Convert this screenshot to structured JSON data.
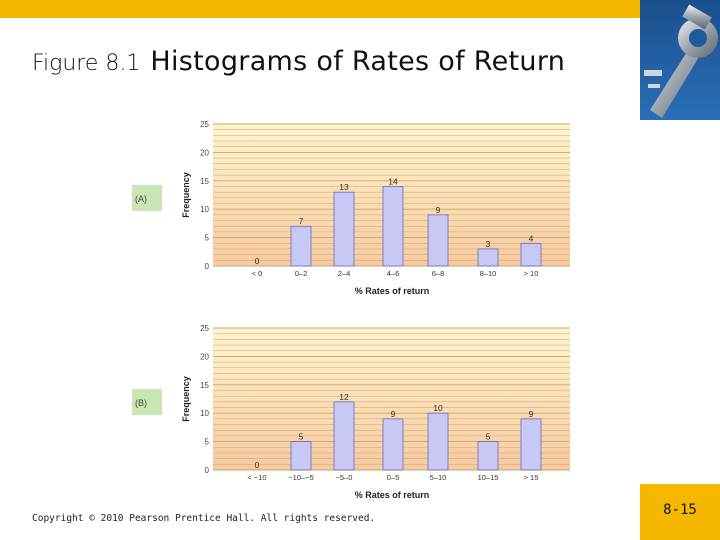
{
  "slide": {
    "figure_label": "Figure 8.1",
    "title": "Histograms of Rates of Return",
    "copyright": "Copyright © 2010 Pearson Prentice Hall. All rights reserved.",
    "page_number": "8-15"
  },
  "colors": {
    "accent": "#f5b800",
    "bar_fill": "#c8c8f4",
    "bar_stroke": "#5a5ab4",
    "panel_top": "#fdf5d0",
    "panel_bottom": "#f8c9a0",
    "tag_fill": "#c8e6b4"
  },
  "chart_data": [
    {
      "type": "bar",
      "panel_label": "(A)",
      "categories": [
        "< 0",
        "0–2",
        "2–4",
        "4–6",
        "6–8",
        "8–10",
        "> 10"
      ],
      "values": [
        0,
        7,
        13,
        14,
        9,
        3,
        4
      ],
      "data_labels": [
        "0",
        "7",
        "13",
        "14",
        "9",
        "3",
        "4"
      ],
      "xlabel": "% Rates of return",
      "ylabel": "Frequency",
      "ylim": [
        0,
        25
      ],
      "yticks": [
        "0",
        "5",
        "10",
        "15",
        "20",
        "25"
      ],
      "grid": true
    },
    {
      "type": "bar",
      "panel_label": "(B)",
      "categories": [
        "< −10",
        "−10–−5",
        "−5–0",
        "0–5",
        "5–10",
        "10–15",
        "> 15"
      ],
      "values": [
        0,
        5,
        12,
        9,
        10,
        5,
        9
      ],
      "data_labels": [
        "0",
        "5",
        "12",
        "9",
        "10",
        "5",
        "9"
      ],
      "xlabel": "% Rates of return",
      "ylabel": "Frequency",
      "ylim": [
        0,
        25
      ],
      "yticks": [
        "0",
        "5",
        "10",
        "15",
        "20",
        "25"
      ],
      "grid": true
    }
  ]
}
